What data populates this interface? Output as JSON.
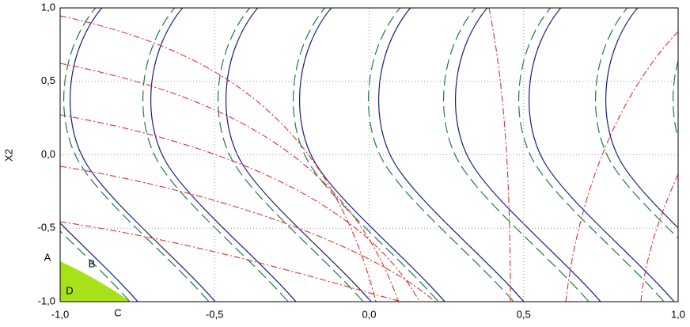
{
  "chart_data": {
    "type": "contour",
    "y_label": "X2",
    "xlim": [
      -1,
      1
    ],
    "ylim": [
      -1,
      1
    ],
    "xticks": [
      {
        "value": -1,
        "label": "-1,0"
      },
      {
        "value": -0.5,
        "label": "-0,5"
      },
      {
        "value": 0,
        "label": "0,0"
      },
      {
        "value": 0.5,
        "label": "0,5"
      },
      {
        "value": 1,
        "label": "1,0"
      }
    ],
    "yticks": [
      {
        "value": -1,
        "label": "-1,0"
      },
      {
        "value": -0.5,
        "label": "-0,5"
      },
      {
        "value": 0,
        "label": "0,0"
      },
      {
        "value": 0.5,
        "label": "0,5"
      },
      {
        "value": 1,
        "label": "1,0"
      }
    ],
    "grid": true,
    "annotations": [
      "A",
      "B",
      "C",
      "D"
    ]
  }
}
